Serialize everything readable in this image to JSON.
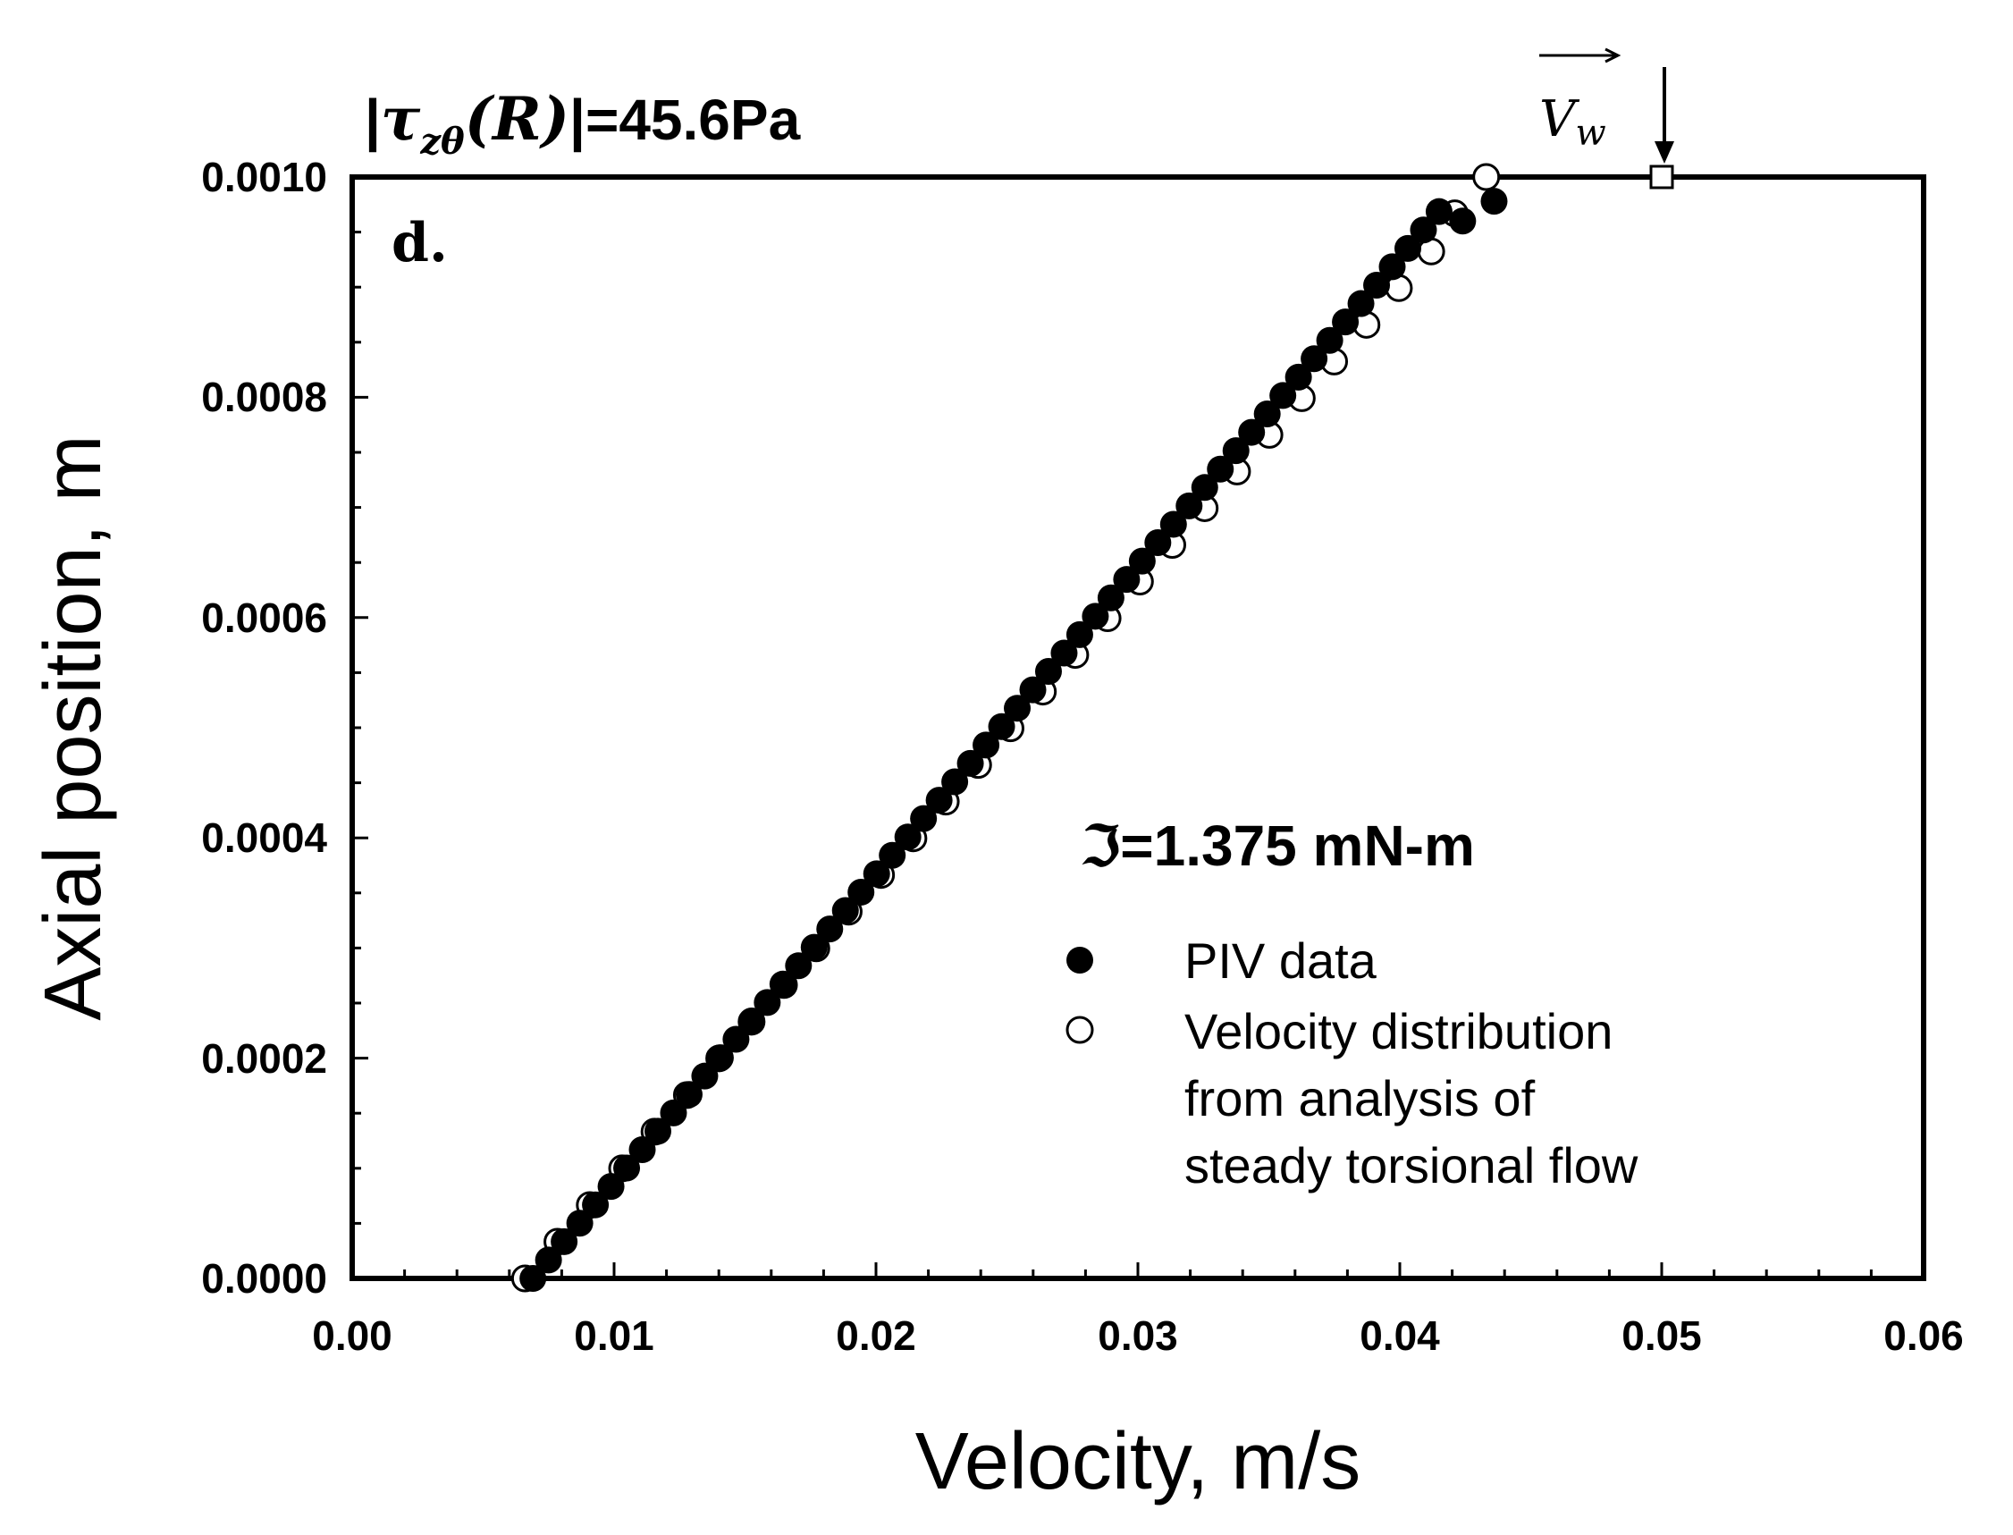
{
  "chart_data": {
    "type": "scatter",
    "title": "",
    "xlabel": "Velocity, m/s",
    "ylabel": "Axial position, m",
    "xlim": [
      0.0,
      0.06
    ],
    "ylim": [
      0.0,
      0.001
    ],
    "grid": false,
    "x_ticks": [
      "0.00",
      "0.01",
      "0.02",
      "0.03",
      "0.04",
      "0.05",
      "0.06"
    ],
    "y_ticks": [
      "0.0000",
      "0.0002",
      "0.0004",
      "0.0006",
      "0.0008",
      "0.0010"
    ],
    "panel_label": "d.",
    "stress_annotation": {
      "prefix": "|",
      "symbol": "τ",
      "subscript": "zθ",
      "arg": "(R)",
      "suffix": "|=45.6Pa"
    },
    "torque_label": {
      "symbol": "ℑ",
      "text": "=1.375 mN-m"
    },
    "wall_velocity": {
      "symbol": "V",
      "subscript": "w",
      "x": 0.05,
      "y": 0.001
    },
    "legend": [
      {
        "marker": "filled-circle",
        "label_lines": [
          "PIV data"
        ]
      },
      {
        "marker": "open-circle",
        "label_lines": [
          "Velocity distribution",
          "from analysis of",
          "steady torsional flow"
        ]
      }
    ],
    "series": [
      {
        "name": "PIV data",
        "marker": "filled",
        "y_start": 0.0,
        "y_step": 1.67e-05,
        "count": 59,
        "x_start": 0.0069,
        "x_end": 0.0415,
        "extra_points": [
          {
            "x": 0.0424,
            "y": 0.00096
          },
          {
            "x": 0.0436,
            "y": 0.000978
          }
        ]
      },
      {
        "name": "Velocity distribution from analysis of steady torsional flow",
        "marker": "open",
        "y_start": 0.0,
        "y_step": 3.33e-05,
        "count": 29,
        "x_start": 0.0066,
        "x_end": 0.0412,
        "extra_points": [
          {
            "x": 0.0421,
            "y": 0.000967
          },
          {
            "x": 0.0433,
            "y": 0.001
          }
        ]
      }
    ]
  }
}
